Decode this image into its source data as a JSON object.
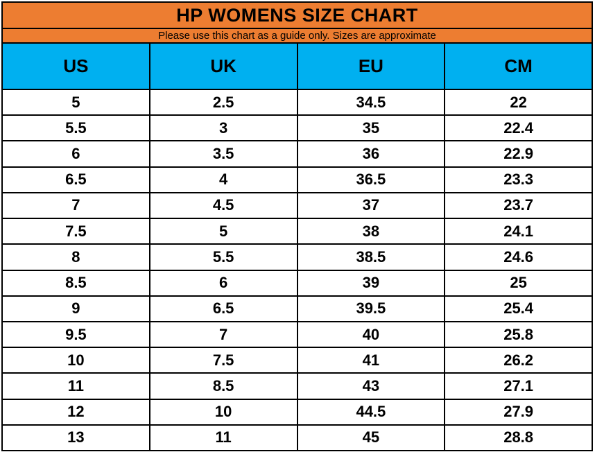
{
  "title": "HP WOMENS SIZE CHART",
  "subtitle": "Please use this chart as a guide only. Sizes are approximate",
  "table": {
    "columns": [
      "US",
      "UK",
      "EU",
      "CM"
    ],
    "rows": [
      [
        "5",
        "2.5",
        "34.5",
        "22"
      ],
      [
        "5.5",
        "3",
        "35",
        "22.4"
      ],
      [
        "6",
        "3.5",
        "36",
        "22.9"
      ],
      [
        "6.5",
        "4",
        "36.5",
        "23.3"
      ],
      [
        "7",
        "4.5",
        "37",
        "23.7"
      ],
      [
        "7.5",
        "5",
        "38",
        "24.1"
      ],
      [
        "8",
        "5.5",
        "38.5",
        "24.6"
      ],
      [
        "8.5",
        "6",
        "39",
        "25"
      ],
      [
        "9",
        "6.5",
        "39.5",
        "25.4"
      ],
      [
        "9.5",
        "7",
        "40",
        "25.8"
      ],
      [
        "10",
        "7.5",
        "41",
        "26.2"
      ],
      [
        "11",
        "8.5",
        "43",
        "27.1"
      ],
      [
        "12",
        "10",
        "44.5",
        "27.9"
      ],
      [
        "13",
        "11",
        "45",
        "28.8"
      ]
    ]
  },
  "colors": {
    "title_background": "#ED7D31",
    "header_background": "#00B0F0",
    "row_background": "#FFFFFF",
    "border": "#000000",
    "text": "#000000"
  }
}
